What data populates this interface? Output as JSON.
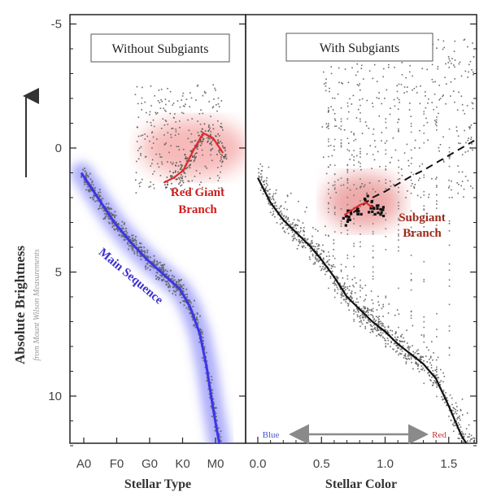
{
  "chart_data": [
    {
      "type": "scatter",
      "title": "Without Subgiants",
      "xlabel": "Stellar Type",
      "ylabel": "Absolute Brightness",
      "ylabel_sub": "from Mount Wilson Measurements",
      "x_categories": [
        "A0",
        "F0",
        "G0",
        "K0",
        "M0"
      ],
      "y_ticks": [
        -5,
        0,
        5,
        10
      ],
      "y_tick_labels": [
        "-5",
        "0",
        "5",
        "10"
      ],
      "ylim": [
        -5.5,
        12
      ],
      "y_inverted": true,
      "annotations": [
        "Red Giant",
        "Branch",
        "Main Sequence"
      ],
      "series": [
        {
          "name": "Main Sequence",
          "x": [
            0.0,
            0.5,
            1.0,
            1.5,
            2.0,
            2.5,
            3.0,
            3.3,
            3.6,
            3.8,
            4.0,
            4.2
          ],
          "y": [
            1.0,
            2.0,
            3.0,
            3.8,
            4.5,
            5.1,
            5.7,
            6.4,
            7.5,
            8.8,
            10.5,
            12.0
          ]
        },
        {
          "name": "Red Giant Branch",
          "x": [
            2.5,
            2.8,
            3.1,
            3.4,
            3.7,
            4.0,
            4.3
          ],
          "y": [
            1.4,
            1.2,
            0.9,
            0.1,
            -0.6,
            -0.4,
            0.2
          ]
        }
      ]
    },
    {
      "type": "scatter",
      "title": "With Subgiants",
      "xlabel": "Stellar Color",
      "x_ticks": [
        0.0,
        0.5,
        1.0,
        1.5
      ],
      "x_tick_labels": [
        "0.0",
        "0.5",
        "1.0",
        "1.5"
      ],
      "xlim": [
        -0.1,
        1.75
      ],
      "ylim": [
        -5.5,
        12
      ],
      "y_inverted": true,
      "annotations": [
        "Subgiant",
        "Branch"
      ],
      "color_arrow": {
        "left_label": "Blue",
        "right_label": "Red"
      },
      "series": [
        {
          "name": "Main Sequence",
          "x": [
            0.0,
            0.1,
            0.2,
            0.3,
            0.4,
            0.5,
            0.6,
            0.7,
            0.8,
            0.9,
            1.0,
            1.1,
            1.2,
            1.3,
            1.4,
            1.5,
            1.6,
            1.65
          ],
          "y": [
            1.2,
            2.2,
            2.9,
            3.4,
            3.9,
            4.5,
            5.2,
            6.0,
            6.5,
            7.0,
            7.4,
            7.9,
            8.3,
            8.7,
            9.3,
            10.4,
            11.6,
            12.0
          ]
        },
        {
          "name": "Giant Branch",
          "x": [
            0.75,
            0.9,
            1.0,
            1.1,
            1.2,
            1.3,
            1.4,
            1.5,
            1.6,
            1.7
          ],
          "y": [
            2.6,
            2.0,
            1.75,
            1.45,
            1.15,
            0.9,
            0.6,
            0.3,
            0.0,
            -0.3
          ]
        },
        {
          "name": "Subgiant Branch",
          "x": [
            0.68,
            0.74,
            0.8,
            0.85,
            0.9
          ],
          "y": [
            2.7,
            2.5,
            2.3,
            2.2,
            2.4
          ]
        }
      ]
    }
  ],
  "colors": {
    "main_sequence": "#3b36e6",
    "red_giant": "#e0292a",
    "subgiant": "#b0221c",
    "dots": "#6a6a6a",
    "arrow": "#8a8a8a"
  }
}
